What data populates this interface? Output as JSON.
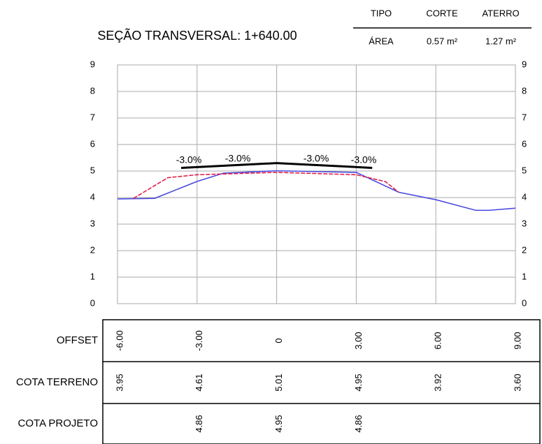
{
  "header": {
    "title": "SEÇÃO TRANSVERSAL: 1+640.00",
    "columns": [
      "TIPO",
      "CORTE",
      "ATERRO"
    ],
    "row": [
      "ÁREA",
      "0.57 m²",
      "1.27 m²"
    ]
  },
  "chart_data": {
    "type": "line",
    "xlim": [
      -6,
      9
    ],
    "ylim": [
      0,
      9
    ],
    "xticks": [
      {
        "value": -6,
        "label": "-6.00"
      },
      {
        "value": -3,
        "label": "-3.00"
      },
      0,
      {
        "value": 3,
        "label": "3.00"
      },
      {
        "value": 6,
        "label": "6.00"
      },
      {
        "value": 9,
        "label": "9.00"
      }
    ],
    "yticks": [
      0,
      1,
      2,
      3,
      4,
      5,
      6,
      7,
      8,
      9
    ],
    "grid": true,
    "series": [
      {
        "color": "#4a4ae0",
        "x": [
          -6,
          -4.6,
          -3,
          -2,
          0,
          3,
          4.6,
          6,
          7.5,
          8,
          9
        ],
        "values": [
          3.95,
          3.97,
          4.61,
          4.92,
          5.01,
          4.95,
          4.2,
          3.92,
          3.52,
          3.52,
          3.6
        ]
      },
      {
        "color": "#e0204a",
        "x": [
          -5.4,
          -4.1,
          -3,
          0,
          3,
          4.1,
          4.6
        ],
        "values": [
          3.97,
          4.75,
          4.86,
          4.95,
          4.86,
          4.6,
          4.2
        ]
      },
      {
        "color": "#000000",
        "x": [
          -3.6,
          0,
          3.6
        ],
        "values": [
          5.12,
          5.3,
          5.12
        ]
      }
    ],
    "annotations": [
      "-3.0%",
      "-3.0%",
      "-3.0%",
      "-3.0%"
    ]
  },
  "table": {
    "offset_label": "OFFSET",
    "rows": [
      {
        "label": "COTA TERRENO",
        "values": [
          "3.95",
          "4.61",
          "5.01",
          "4.95",
          "3.92",
          "3.60"
        ]
      },
      {
        "label": "COTA PROJETO",
        "values": [
          null,
          "4.86",
          "4.95",
          "4.86",
          null,
          null
        ]
      }
    ]
  }
}
